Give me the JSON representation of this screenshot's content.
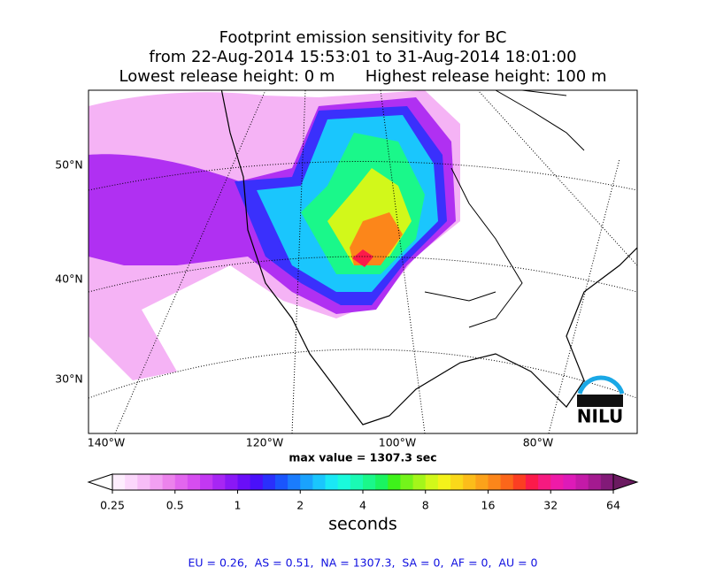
{
  "header": {
    "title_lines": [
      "Footprint emission sensitivity for BC",
      "from 22-Aug-2014 15:53:01 to 31-Aug-2014 18:01:00",
      "Lowest release height: 0 m      Highest release height: 100 m"
    ]
  },
  "map": {
    "lat_labels": [
      "50°N",
      "40°N",
      "30°N"
    ],
    "lon_labels": [
      "140°W",
      "120°W",
      "100°W",
      "80°W"
    ],
    "max_value_text": "max value = 1307.3 sec",
    "logo": "NILU"
  },
  "colorbar": {
    "label": "seconds",
    "log": true,
    "lim": [
      0.25,
      64
    ],
    "ticks": [
      0.25,
      0.5,
      1,
      2,
      4,
      8,
      16,
      32,
      64
    ],
    "colors": [
      "#fdeefd",
      "#fbd7fb",
      "#f7bdf7",
      "#f2a0f2",
      "#ec83ec",
      "#e266ee",
      "#d64df0",
      "#c338f2",
      "#a726f4",
      "#8a18f6",
      "#6a0ef8",
      "#4a10fa",
      "#2a30fc",
      "#1a55fd",
      "#1a7cfd",
      "#1aa2fd",
      "#1ac6fd",
      "#1ae8f5",
      "#1afadc",
      "#1afab4",
      "#1af88a",
      "#1af460",
      "#3ef21a",
      "#74f41a",
      "#a4f61a",
      "#d2f81a",
      "#f4f21a",
      "#fad81a",
      "#fcbd1a",
      "#fca21a",
      "#fc861a",
      "#fc661a",
      "#fc3e22",
      "#fc1a4a",
      "#f61a80",
      "#ee1aa8",
      "#de1ab8",
      "#c41aa8",
      "#a41a90",
      "#821a78"
    ],
    "under_color": "#ffffff",
    "over_color": "#6a1a60"
  },
  "footer": {
    "text": "EU = 0.26,  AS = 0.51,  NA = 1307.3,  SA = 0,  AF = 0,  AU = 0"
  }
}
